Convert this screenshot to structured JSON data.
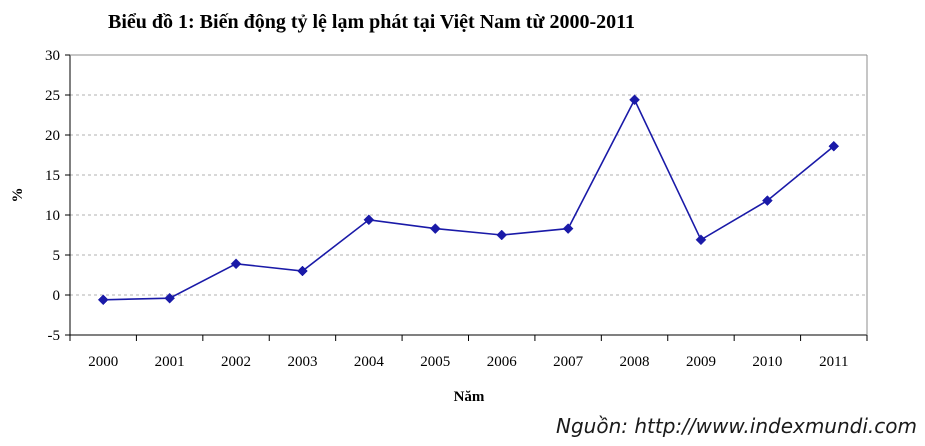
{
  "chart_data": {
    "type": "line",
    "title": "Biểu đồ 1: Biến động tỷ lệ lạm phát tại Việt Nam từ 2000-2011",
    "xlabel": "Năm",
    "ylabel": "%",
    "ylim": [
      -5,
      30
    ],
    "yticks": [
      "-5",
      "0",
      "5",
      "10",
      "15",
      "20",
      "25",
      "30"
    ],
    "categories": [
      "2000",
      "2001",
      "2002",
      "2003",
      "2004",
      "2005",
      "2006",
      "2007",
      "2008",
      "2009",
      "2010",
      "2011"
    ],
    "series": [
      {
        "values": [
          -0.6,
          -0.4,
          3.9,
          3.0,
          9.4,
          8.3,
          7.5,
          8.3,
          24.4,
          6.9,
          11.8,
          18.6
        ],
        "color": "#1a1aa8",
        "marker": "diamond"
      }
    ],
    "grid": true,
    "source": "Nguồn: http://www.indexmundi.com"
  }
}
